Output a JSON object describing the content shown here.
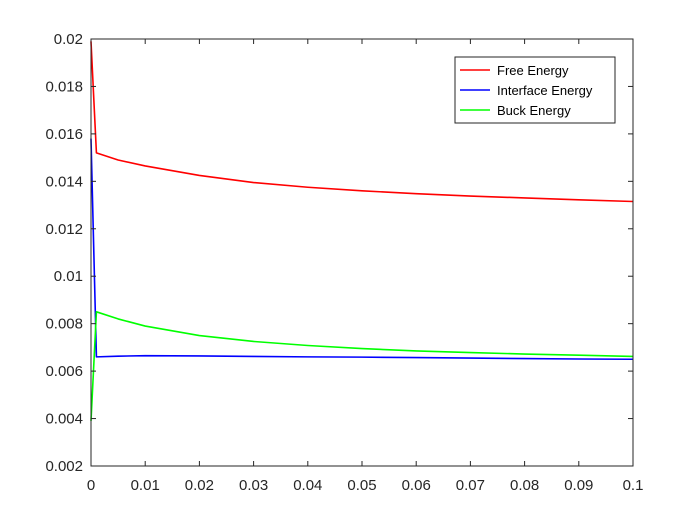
{
  "chart_data": {
    "type": "line",
    "title": "",
    "xlabel": "",
    "ylabel": "",
    "xlim": [
      0,
      0.1
    ],
    "ylim": [
      0.002,
      0.02
    ],
    "x_ticks": [
      0,
      0.01,
      0.02,
      0.03,
      0.04,
      0.05,
      0.06,
      0.07,
      0.08,
      0.09,
      0.1
    ],
    "x_tick_labels": [
      "0",
      "0.01",
      "0.02",
      "0.03",
      "0.04",
      "0.05",
      "0.06",
      "0.07",
      "0.08",
      "0.09",
      "0.1"
    ],
    "y_ticks": [
      0.002,
      0.004,
      0.006,
      0.008,
      0.01,
      0.012,
      0.014,
      0.016,
      0.018,
      0.02
    ],
    "y_tick_labels": [
      "0.002",
      "0.004",
      "0.006",
      "0.008",
      "0.01",
      "0.012",
      "0.014",
      "0.016",
      "0.018",
      "0.02"
    ],
    "grid": false,
    "box": true,
    "legend_position": "top-right",
    "series": [
      {
        "name": "Free Energy",
        "color": "#ff0000",
        "x": [
          0,
          0.001,
          0.005,
          0.01,
          0.02,
          0.03,
          0.04,
          0.05,
          0.06,
          0.07,
          0.08,
          0.09,
          0.1
        ],
        "y": [
          0.0199,
          0.0152,
          0.0149,
          0.01465,
          0.01425,
          0.01395,
          0.01375,
          0.0136,
          0.01348,
          0.01338,
          0.0133,
          0.01322,
          0.01315
        ]
      },
      {
        "name": "Interface Energy",
        "color": "#0000ff",
        "x": [
          0,
          0.001,
          0.005,
          0.01,
          0.02,
          0.03,
          0.04,
          0.05,
          0.06,
          0.07,
          0.08,
          0.09,
          0.1
        ],
        "y": [
          0.0158,
          0.0066,
          0.00663,
          0.00665,
          0.00664,
          0.00662,
          0.0066,
          0.00659,
          0.00657,
          0.00655,
          0.00653,
          0.00651,
          0.0065
        ]
      },
      {
        "name": "Buck Energy",
        "color": "#00ff00",
        "x": [
          0,
          0.001,
          0.005,
          0.01,
          0.02,
          0.03,
          0.04,
          0.05,
          0.06,
          0.07,
          0.08,
          0.09,
          0.1
        ],
        "y": [
          0.0039,
          0.0085,
          0.0082,
          0.0079,
          0.0075,
          0.00725,
          0.00708,
          0.00695,
          0.00685,
          0.00678,
          0.00672,
          0.00667,
          0.00662
        ]
      }
    ]
  }
}
